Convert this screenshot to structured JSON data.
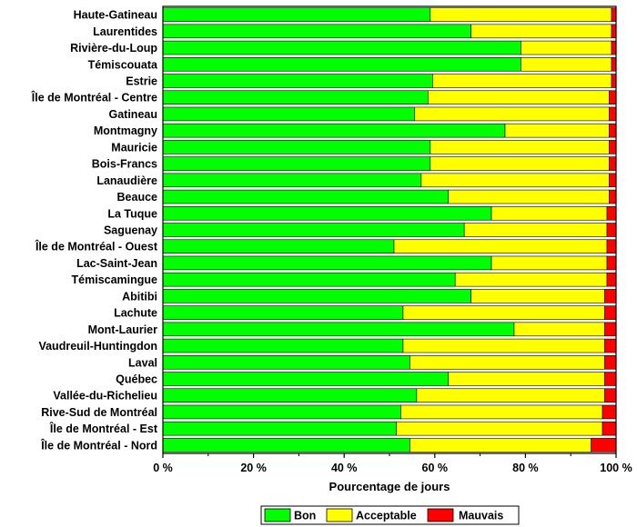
{
  "chart_data": {
    "type": "bar",
    "orientation": "horizontal",
    "stacked": true,
    "title": "",
    "xlabel": "Pourcentage de jours",
    "ylabel": "",
    "xlim": [
      0,
      100
    ],
    "xticks": [
      "0 %",
      "20 %",
      "40 %",
      "60 %",
      "80 %",
      "100 %"
    ],
    "grid": false,
    "legend_position": "bottom",
    "categories": [
      "Haute-Gatineau",
      "Laurentides",
      "Rivière-du-Loup",
      "Témiscouata",
      "Estrie",
      "Île de Montréal - Centre",
      "Gatineau",
      "Montmagny",
      "Mauricie",
      "Bois-Francs",
      "Lanaudière",
      "Beauce",
      "La Tuque",
      "Saguenay",
      "Île de Montréal - Ouest",
      "Lac-Saint-Jean",
      "Témiscamingue",
      "Abitibi",
      "Lachute",
      "Mont-Laurier",
      "Vaudreuil-Huntingdon",
      "Laval",
      "Québec",
      "Vallée-du-Richelieu",
      "Rive-Sud de Montréal",
      "Île de Montréal - Est",
      "Île de Montréal - Nord"
    ],
    "series": [
      {
        "name": "Bon",
        "color": "#00ff00",
        "values": [
          59,
          68,
          79,
          79,
          59.5,
          58.5,
          55.5,
          75.5,
          59,
          59,
          57,
          63,
          72.5,
          66.5,
          51,
          72.5,
          64.5,
          68,
          53,
          77.5,
          53,
          54.5,
          63,
          56,
          52.5,
          51.5,
          54.5
        ]
      },
      {
        "name": "Acceptable",
        "color": "#ffff00",
        "values": [
          40,
          31,
          20,
          20,
          39.5,
          40,
          43,
          23,
          39.5,
          39.5,
          41.5,
          35.5,
          25.5,
          31.5,
          47,
          25.5,
          33.5,
          29.5,
          44.5,
          20,
          44.5,
          43,
          34.5,
          41.5,
          44.5,
          45.5,
          40
        ]
      },
      {
        "name": "Mauvais",
        "color": "#ff0000",
        "values": [
          1,
          1,
          1,
          1,
          1,
          1.5,
          1.5,
          1.5,
          1.5,
          1.5,
          1.5,
          1.5,
          2,
          2,
          2,
          2,
          2,
          2.5,
          2.5,
          2.5,
          2.5,
          2.5,
          2.5,
          2.5,
          3,
          3,
          5.5
        ]
      }
    ]
  }
}
